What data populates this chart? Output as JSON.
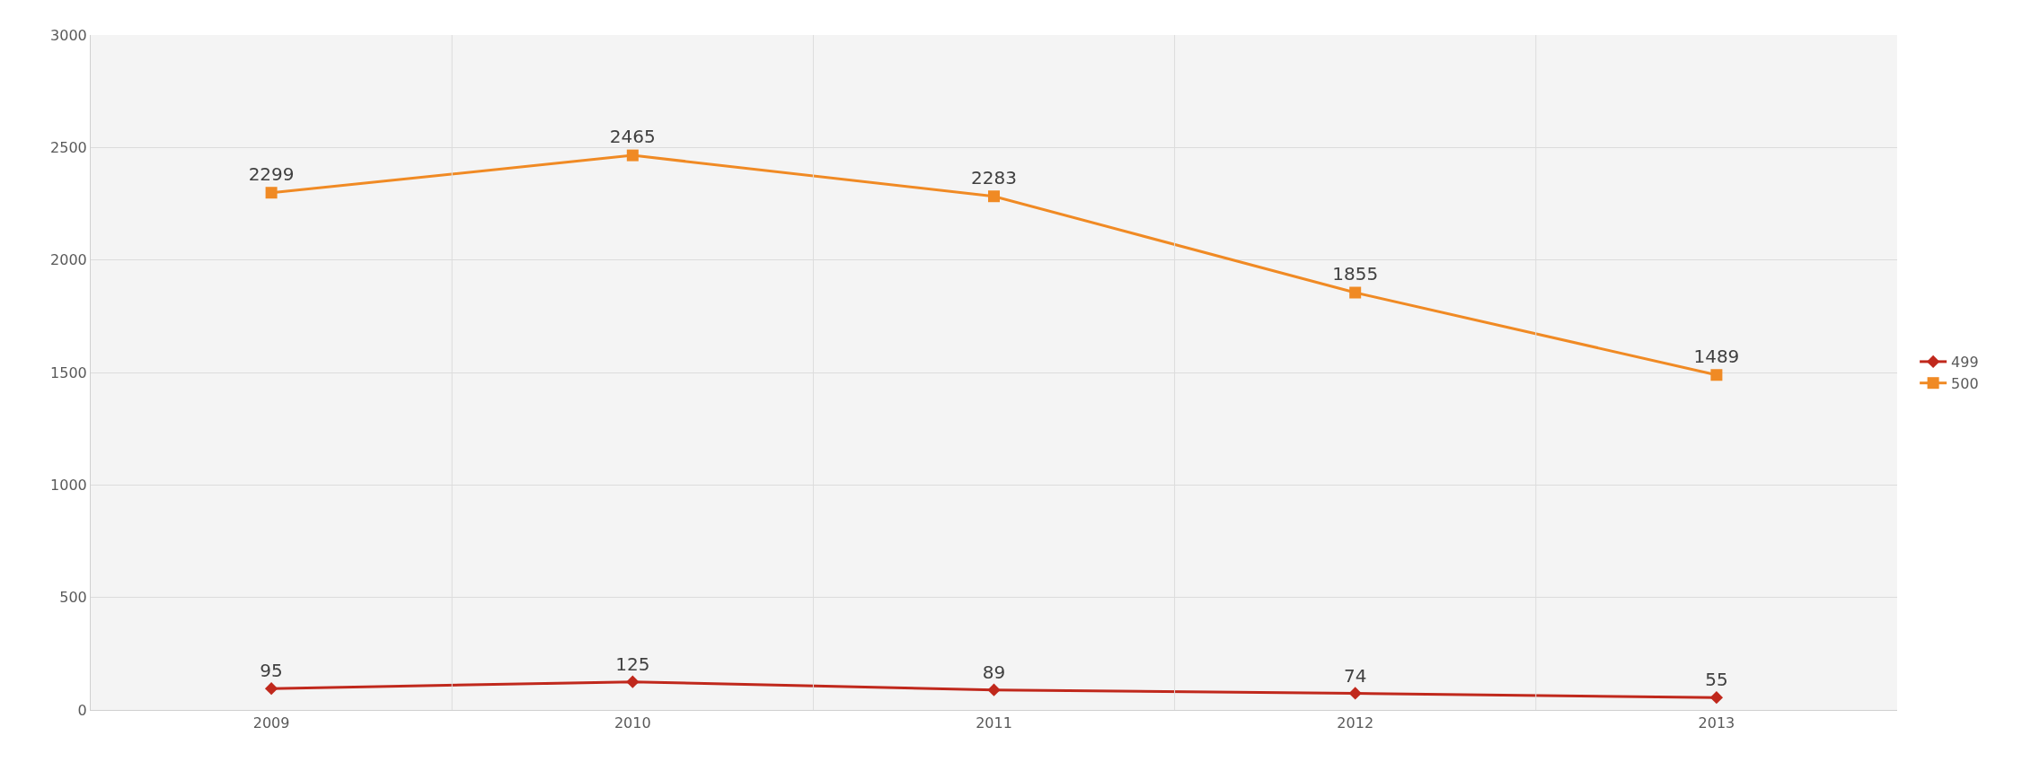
{
  "chart_data": {
    "type": "line",
    "categories": [
      "2009",
      "2010",
      "2011",
      "2012",
      "2013"
    ],
    "series": [
      {
        "name": "499",
        "color": "#c0281c",
        "marker": "diamond",
        "values": [
          95,
          125,
          89,
          74,
          55
        ]
      },
      {
        "name": "500",
        "color": "#f08a24",
        "marker": "square",
        "values": [
          2299,
          2465,
          2283,
          1855,
          1489
        ]
      }
    ],
    "ylim": [
      0,
      3000
    ],
    "yticks": [
      0,
      500,
      1000,
      1500,
      2000,
      2500,
      3000
    ],
    "grid": true,
    "legend": "right",
    "data_labels": true,
    "line_style": "solid"
  }
}
